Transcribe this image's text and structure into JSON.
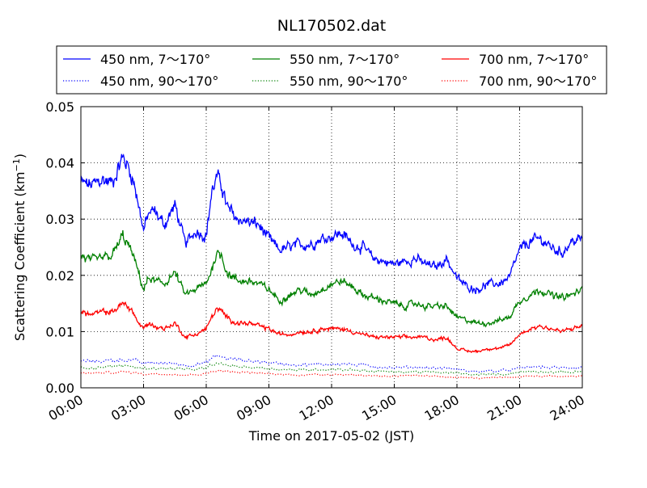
{
  "chart_data": {
    "type": "line",
    "title": "NL170502.dat",
    "xlabel": "Time on 2017-05-02 (JST)",
    "ylabel_main": "Scattering Coefficient (km",
    "ylabel_sup": "−1",
    "ylabel_close": ")",
    "xlim": [
      0,
      24
    ],
    "ylim": [
      0,
      0.05
    ],
    "grid": true,
    "legend_position": "top",
    "x_ticks": [
      {
        "value": 0,
        "label": "00:00"
      },
      {
        "value": 3,
        "label": "03:00"
      },
      {
        "value": 6,
        "label": "06:00"
      },
      {
        "value": 9,
        "label": "09:00"
      },
      {
        "value": 12,
        "label": "12:00"
      },
      {
        "value": 15,
        "label": "15:00"
      },
      {
        "value": 18,
        "label": "18:00"
      },
      {
        "value": 21,
        "label": "21:00"
      },
      {
        "value": 24,
        "label": "24:00"
      }
    ],
    "y_ticks": [
      {
        "value": 0.0,
        "label": "0.00"
      },
      {
        "value": 0.01,
        "label": "0.01"
      },
      {
        "value": 0.02,
        "label": "0.02"
      },
      {
        "value": 0.03,
        "label": "0.03"
      },
      {
        "value": 0.04,
        "label": "0.04"
      },
      {
        "value": 0.05,
        "label": "0.05"
      }
    ],
    "x": [
      0,
      0.5,
      1,
      1.5,
      2,
      2.25,
      2.5,
      2.75,
      3,
      3.25,
      3.5,
      4,
      4.5,
      5,
      5.5,
      6,
      6.25,
      6.5,
      6.75,
      7,
      7.5,
      8,
      8.5,
      9,
      9.5,
      10,
      10.5,
      11,
      11.5,
      12,
      12.5,
      13,
      13.5,
      14,
      14.5,
      15,
      15.5,
      16,
      16.5,
      17,
      17.5,
      18,
      18.5,
      19,
      19.5,
      20,
      20.5,
      21,
      21.5,
      22,
      22.5,
      23,
      23.5,
      24
    ],
    "series": [
      {
        "name": "450 nm, 7～170°",
        "color": "#0000ff",
        "style": "solid",
        "values": [
          0.0365,
          0.036,
          0.037,
          0.0365,
          0.041,
          0.0395,
          0.037,
          0.033,
          0.028,
          0.031,
          0.0315,
          0.029,
          0.0325,
          0.0255,
          0.028,
          0.027,
          0.0345,
          0.0375,
          0.036,
          0.032,
          0.03,
          0.0295,
          0.029,
          0.0265,
          0.0245,
          0.025,
          0.0255,
          0.0255,
          0.0265,
          0.027,
          0.0275,
          0.0255,
          0.025,
          0.023,
          0.0225,
          0.022,
          0.0225,
          0.023,
          0.022,
          0.0215,
          0.023,
          0.0195,
          0.018,
          0.0175,
          0.0185,
          0.0185,
          0.0195,
          0.0245,
          0.026,
          0.0265,
          0.025,
          0.024,
          0.026,
          0.0265
        ]
      },
      {
        "name": "450 nm, 90～170°",
        "color": "#0000ff",
        "style": "dotted",
        "values": [
          0.0048,
          0.0047,
          0.0048,
          0.0049,
          0.005,
          0.005,
          0.0049,
          0.0046,
          0.0043,
          0.0044,
          0.0045,
          0.0043,
          0.0044,
          0.004,
          0.0042,
          0.0044,
          0.0052,
          0.0057,
          0.0055,
          0.0052,
          0.005,
          0.0048,
          0.0047,
          0.0045,
          0.0043,
          0.0042,
          0.0041,
          0.0041,
          0.0042,
          0.0042,
          0.0043,
          0.0041,
          0.004,
          0.0038,
          0.0037,
          0.0036,
          0.0036,
          0.0037,
          0.0036,
          0.0035,
          0.0035,
          0.0033,
          0.003,
          0.0029,
          0.003,
          0.003,
          0.0031,
          0.0035,
          0.0037,
          0.0037,
          0.0036,
          0.0035,
          0.0036,
          0.0037
        ]
      },
      {
        "name": "550 nm, 7～170°",
        "color": "#008000",
        "style": "solid",
        "values": [
          0.0235,
          0.0225,
          0.023,
          0.0235,
          0.027,
          0.0255,
          0.0235,
          0.0205,
          0.0175,
          0.0195,
          0.019,
          0.0185,
          0.0205,
          0.0165,
          0.0175,
          0.0185,
          0.021,
          0.024,
          0.0235,
          0.0205,
          0.019,
          0.019,
          0.0185,
          0.0175,
          0.0155,
          0.0165,
          0.0175,
          0.0165,
          0.0175,
          0.0185,
          0.019,
          0.018,
          0.0165,
          0.016,
          0.0155,
          0.015,
          0.0145,
          0.015,
          0.0145,
          0.0145,
          0.0145,
          0.0125,
          0.012,
          0.0115,
          0.0115,
          0.012,
          0.0125,
          0.0155,
          0.0165,
          0.0175,
          0.0165,
          0.016,
          0.0165,
          0.0175
        ]
      },
      {
        "name": "550 nm, 90～170°",
        "color": "#008000",
        "style": "dotted",
        "values": [
          0.0037,
          0.0036,
          0.0037,
          0.0038,
          0.0039,
          0.0039,
          0.0038,
          0.0036,
          0.0034,
          0.0035,
          0.0035,
          0.0034,
          0.0035,
          0.0032,
          0.0033,
          0.0035,
          0.004,
          0.0043,
          0.0042,
          0.004,
          0.0038,
          0.0037,
          0.0036,
          0.0035,
          0.0033,
          0.0032,
          0.0032,
          0.0032,
          0.0033,
          0.0033,
          0.0033,
          0.0032,
          0.0031,
          0.003,
          0.0029,
          0.0028,
          0.0028,
          0.0029,
          0.0028,
          0.0027,
          0.0027,
          0.0026,
          0.0024,
          0.0023,
          0.0024,
          0.0024,
          0.0025,
          0.0028,
          0.0029,
          0.0029,
          0.0028,
          0.0028,
          0.0028,
          0.0029
        ]
      },
      {
        "name": "700 nm, 7～170°",
        "color": "#ff0000",
        "style": "solid",
        "values": [
          0.0135,
          0.013,
          0.0135,
          0.0135,
          0.015,
          0.0145,
          0.0135,
          0.0115,
          0.0105,
          0.0115,
          0.011,
          0.0105,
          0.0115,
          0.009,
          0.0095,
          0.0105,
          0.0125,
          0.014,
          0.0135,
          0.0125,
          0.0115,
          0.0115,
          0.011,
          0.0105,
          0.0095,
          0.0095,
          0.01,
          0.01,
          0.0105,
          0.0105,
          0.0105,
          0.01,
          0.0095,
          0.009,
          0.009,
          0.009,
          0.009,
          0.009,
          0.009,
          0.0085,
          0.009,
          0.007,
          0.0065,
          0.0065,
          0.007,
          0.007,
          0.0075,
          0.0095,
          0.0105,
          0.011,
          0.0105,
          0.01,
          0.0105,
          0.011
        ]
      },
      {
        "name": "700 nm, 90～170°",
        "color": "#ff0000",
        "style": "dotted",
        "values": [
          0.0027,
          0.0026,
          0.0027,
          0.0027,
          0.0028,
          0.0028,
          0.0027,
          0.0026,
          0.0024,
          0.0025,
          0.0025,
          0.0024,
          0.0025,
          0.0023,
          0.0024,
          0.0025,
          0.0029,
          0.0031,
          0.003,
          0.0029,
          0.0028,
          0.0027,
          0.0026,
          0.0025,
          0.0024,
          0.0023,
          0.0023,
          0.0023,
          0.0024,
          0.0024,
          0.0024,
          0.0023,
          0.0022,
          0.0022,
          0.0021,
          0.0021,
          0.0021,
          0.0021,
          0.0021,
          0.002,
          0.002,
          0.0019,
          0.0018,
          0.0017,
          0.0018,
          0.0018,
          0.0018,
          0.002,
          0.0021,
          0.0021,
          0.0021,
          0.002,
          0.0021,
          0.0021
        ]
      }
    ]
  }
}
